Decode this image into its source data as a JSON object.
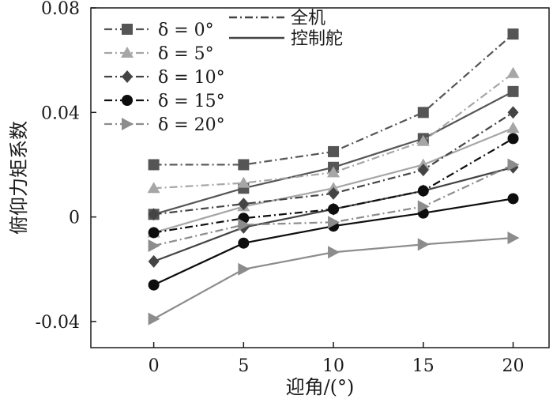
{
  "chart_data": {
    "type": "line",
    "xlabel": "迎角/(°)",
    "ylabel": "俯仰力矩系数",
    "x": [
      0,
      5,
      10,
      15,
      20
    ],
    "xlim": [
      -3.5,
      22
    ],
    "ylim": [
      -0.05,
      0.08
    ],
    "x_ticks": [
      "0",
      "5",
      "10",
      "15",
      "20"
    ],
    "y_ticks": [
      "-0.04",
      "0",
      "0.04",
      "0.08"
    ],
    "grid": false,
    "legend_placement": "top-left",
    "line_style_legend": [
      {
        "label": "全机",
        "style": "dashdot"
      },
      {
        "label": "控制舵",
        "style": "solid"
      }
    ],
    "series_groups": [
      {
        "name": "δ = 0°",
        "marker": "square",
        "color": "#555555",
        "full_aircraft": [
          0.02,
          0.02,
          0.025,
          0.04,
          0.07
        ],
        "control_surface": [
          0.001,
          0.011,
          0.019,
          0.03,
          0.048
        ]
      },
      {
        "name": "δ = 5°",
        "marker": "triangle-up",
        "color": "#a6a6a6",
        "full_aircraft": [
          0.011,
          0.013,
          0.017,
          0.029,
          0.055
        ],
        "control_surface": [
          -0.006,
          0.004,
          0.011,
          0.02,
          0.034
        ]
      },
      {
        "name": "δ = 10°",
        "marker": "diamond",
        "color": "#444444",
        "full_aircraft": [
          0.001,
          0.005,
          0.009,
          0.018,
          0.04
        ],
        "control_surface": [
          -0.017,
          -0.004,
          0.003,
          0.01,
          0.019
        ]
      },
      {
        "name": "δ = 15°",
        "marker": "circle",
        "color": "#0d0d0d",
        "full_aircraft": [
          -0.006,
          -0.0005,
          0.003,
          0.01,
          0.03
        ],
        "control_surface": [
          -0.026,
          -0.01,
          -0.0035,
          0.0015,
          0.007
        ]
      },
      {
        "name": "δ = 20°",
        "marker": "triangle-right",
        "color": "#8c8c8c",
        "full_aircraft": [
          -0.011,
          -0.003,
          -0.002,
          0.004,
          0.02
        ],
        "control_surface": [
          -0.039,
          -0.02,
          -0.0135,
          -0.0105,
          -0.008
        ]
      }
    ]
  }
}
